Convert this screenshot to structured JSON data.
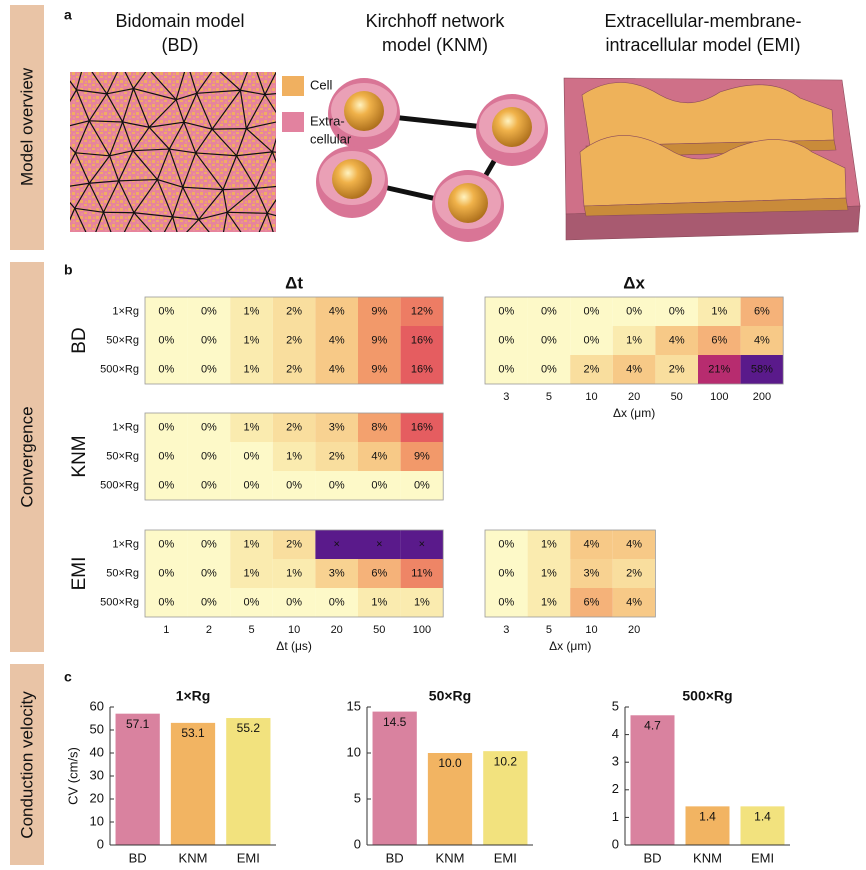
{
  "overview": {
    "label": "a",
    "side_label": "Model overview",
    "models": [
      {
        "title": [
          "Bidomain model",
          "(BD)"
        ]
      },
      {
        "title": [
          "Kirchhoff network",
          "model (KNM)"
        ]
      },
      {
        "title": [
          "Extracellular-membrane-",
          "intracellular model (EMI)"
        ]
      }
    ],
    "legend": [
      {
        "label": [
          "Cell"
        ],
        "color": "#f0b060"
      },
      {
        "label": [
          "Extra-",
          "cellular"
        ],
        "color": "#e2829f"
      }
    ]
  },
  "convergence": {
    "label": "b",
    "side_label": "Convergence"
  },
  "velocity": {
    "label": "c",
    "side_label": "Conduction velocity"
  },
  "chart_data": [
    {
      "type": "heatmap",
      "title": "Δt",
      "ylabel": "BD",
      "rows": [
        "1×Rg",
        "50×Rg",
        "500×Rg"
      ],
      "null_color": "#5a1a8b",
      "values": [
        [
          0,
          0,
          1,
          2,
          4,
          9,
          12
        ],
        [
          0,
          0,
          1,
          2,
          4,
          9,
          16
        ],
        [
          0,
          0,
          1,
          2,
          4,
          9,
          16
        ]
      ],
      "value_labels": [
        [
          "0%",
          "0%",
          "1%",
          "2%",
          "4%",
          "9%",
          "12%"
        ],
        [
          "0%",
          "0%",
          "1%",
          "2%",
          "4%",
          "9%",
          "16%"
        ],
        [
          "0%",
          "0%",
          "1%",
          "2%",
          "4%",
          "9%",
          "16%"
        ]
      ]
    },
    {
      "type": "heatmap",
      "title": "Δx",
      "categories": [
        3,
        5,
        10,
        20,
        50,
        100,
        200
      ],
      "xlabel": "Δx (μm)",
      "null_color": "#5a1a8b",
      "values": [
        [
          0,
          0,
          0,
          0,
          0,
          1,
          6
        ],
        [
          0,
          0,
          0,
          1,
          4,
          6,
          4
        ],
        [
          0,
          0,
          2,
          4,
          2,
          21,
          58
        ]
      ],
      "value_labels": [
        [
          "0%",
          "0%",
          "0%",
          "0%",
          "0%",
          "1%",
          "6%"
        ],
        [
          "0%",
          "0%",
          "0%",
          "1%",
          "4%",
          "6%",
          "4%"
        ],
        [
          "0%",
          "0%",
          "2%",
          "4%",
          "2%",
          "21%",
          "58%"
        ]
      ]
    },
    {
      "type": "heatmap",
      "ylabel": "KNM",
      "rows": [
        "1×Rg",
        "50×Rg",
        "500×Rg"
      ],
      "null_color": "#5a1a8b",
      "values": [
        [
          0,
          0,
          1,
          2,
          3,
          8,
          16
        ],
        [
          0,
          0,
          0,
          1,
          2,
          4,
          9
        ],
        [
          0,
          0,
          0,
          0,
          0,
          0,
          0
        ]
      ],
      "value_labels": [
        [
          "0%",
          "0%",
          "1%",
          "2%",
          "3%",
          "8%",
          "16%"
        ],
        [
          "0%",
          "0%",
          "0%",
          "1%",
          "2%",
          "4%",
          "9%"
        ],
        [
          "0%",
          "0%",
          "0%",
          "0%",
          "0%",
          "0%",
          "0%"
        ]
      ]
    },
    {
      "type": "heatmap",
      "ylabel": "EMI",
      "rows": [
        "1×Rg",
        "50×Rg",
        "500×Rg"
      ],
      "categories": [
        1,
        2,
        5,
        10,
        20,
        50,
        100
      ],
      "xlabel": "Δt (μs)",
      "null_color": "#5a1a8b",
      "values": [
        [
          0,
          0,
          1,
          2,
          null,
          null,
          null
        ],
        [
          0,
          0,
          1,
          1,
          3,
          6,
          11
        ],
        [
          0,
          0,
          0,
          0,
          0,
          1,
          1
        ]
      ],
      "value_labels": [
        [
          "0%",
          "0%",
          "1%",
          "2%",
          "×",
          "×",
          "×"
        ],
        [
          "0%",
          "0%",
          "1%",
          "1%",
          "3%",
          "6%",
          "11%"
        ],
        [
          "0%",
          "0%",
          "0%",
          "0%",
          "0%",
          "1%",
          "1%"
        ]
      ]
    },
    {
      "type": "heatmap",
      "categories": [
        3,
        5,
        10,
        20
      ],
      "xlabel": "Δx (μm)",
      "null_color": "#5a1a8b",
      "values": [
        [
          0,
          1,
          4,
          4
        ],
        [
          0,
          1,
          3,
          2
        ],
        [
          0,
          1,
          6,
          4
        ]
      ],
      "value_labels": [
        [
          "0%",
          "1%",
          "4%",
          "4%"
        ],
        [
          "0%",
          "1%",
          "3%",
          "2%"
        ],
        [
          "0%",
          "1%",
          "6%",
          "4%"
        ]
      ]
    },
    {
      "type": "bar",
      "title": "1×Rg",
      "ylabel": "CV (cm/s)",
      "categories": [
        "BD",
        "KNM",
        "EMI"
      ],
      "values": [
        57.1,
        53.1,
        55.2
      ],
      "colors": [
        "#d9829f",
        "#f2b462",
        "#f2e27e"
      ],
      "ylim": [
        0,
        60
      ],
      "yticks": [
        0,
        10,
        20,
        30,
        40,
        50,
        60
      ]
    },
    {
      "type": "bar",
      "title": "50×Rg",
      "categories": [
        "BD",
        "KNM",
        "EMI"
      ],
      "values": [
        14.5,
        10.0,
        10.2
      ],
      "value_labels": [
        "14.5",
        "10.0",
        "10.2"
      ],
      "colors": [
        "#d9829f",
        "#f2b462",
        "#f2e27e"
      ],
      "ylim": [
        0,
        15
      ],
      "yticks": [
        0,
        5,
        10,
        15
      ]
    },
    {
      "type": "bar",
      "title": "500×Rg",
      "categories": [
        "BD",
        "KNM",
        "EMI"
      ],
      "values": [
        4.7,
        1.4,
        1.4
      ],
      "colors": [
        "#d9829f",
        "#f2b462",
        "#f2e27e"
      ],
      "ylim": [
        0,
        5
      ],
      "yticks": [
        0,
        1,
        2,
        3,
        4,
        5
      ]
    }
  ]
}
